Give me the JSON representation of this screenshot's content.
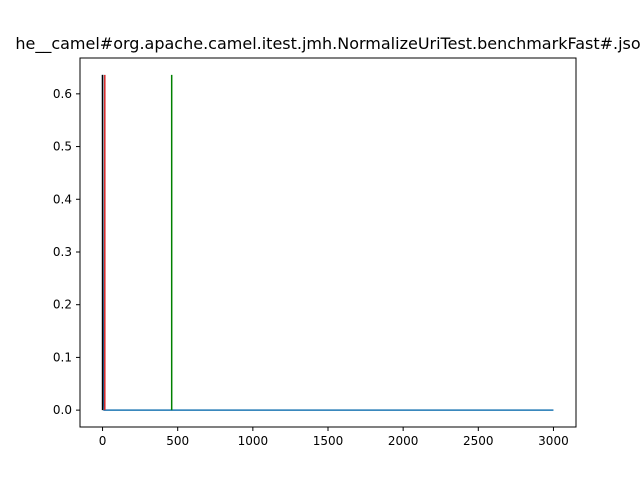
{
  "chart_data": {
    "type": "line",
    "title": "he__camel#org.apache.camel.itest.jmh.NormalizeUriTest.benchmarkFast#.jso",
    "xlabel": "",
    "ylabel": "",
    "xlim": [
      -150,
      3150
    ],
    "ylim": [
      -0.032,
      0.668
    ],
    "x_ticks": [
      0,
      500,
      1000,
      1500,
      2000,
      2500,
      3000
    ],
    "y_ticks": [
      0.0,
      0.1,
      0.2,
      0.3,
      0.4,
      0.5,
      0.6
    ],
    "grid": false,
    "series": [
      {
        "color": "#1f77b4",
        "x": [
          0,
          3,
          6,
          10,
          20,
          50,
          3000
        ],
        "y": [
          0.636,
          0.3,
          0.02,
          0.0,
          0.0,
          0.0,
          0.0
        ]
      }
    ],
    "vertical_lines": [
      {
        "x": 0,
        "ymin": 0.0,
        "ymax": 0.636,
        "color": "#000000"
      },
      {
        "x": 15,
        "ymin": 0.0,
        "ymax": 0.636,
        "color": "#d62728"
      },
      {
        "x": 460,
        "ymin": 0.0,
        "ymax": 0.636,
        "color": "#008000"
      }
    ]
  }
}
